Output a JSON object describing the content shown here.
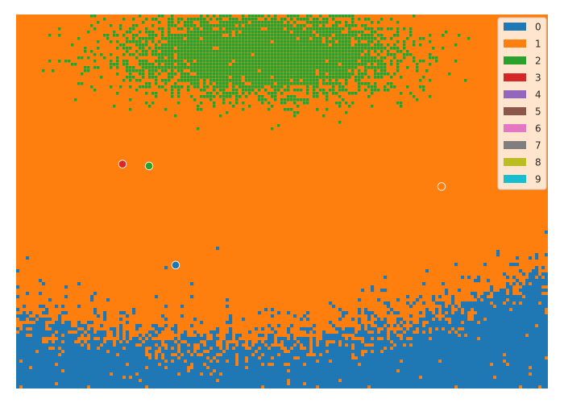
{
  "chart_data": {
    "type": "heatmap",
    "title": "",
    "xlabel": "",
    "ylabel": "",
    "axes_visible": false,
    "grid": false,
    "legend_placement": "top-right",
    "x": [
      0,
      100
    ],
    "y": [
      0,
      100
    ],
    "classes": [
      {
        "label": "0",
        "color": "#1f77b4"
      },
      {
        "label": "1",
        "color": "#ff7f0e"
      },
      {
        "label": "2",
        "color": "#2ca02c"
      },
      {
        "label": "3",
        "color": "#d62728"
      },
      {
        "label": "4",
        "color": "#9467bd"
      },
      {
        "label": "5",
        "color": "#8c564b"
      },
      {
        "label": "6",
        "color": "#e377c2"
      },
      {
        "label": "7",
        "color": "#7f7f7f"
      },
      {
        "label": "8",
        "color": "#bcbd22"
      },
      {
        "label": "9",
        "color": "#17becf"
      }
    ],
    "background_class": "1",
    "regions": [
      {
        "class": "2",
        "description": "scattered cluster near top-center",
        "center": [
          46,
          89
        ],
        "spread": [
          18,
          8
        ]
      },
      {
        "class": "0",
        "description": "band along the bottom, rising toward the right",
        "edge_left_y": 19,
        "edge_mid_y": 12,
        "edge_right_y": 31
      }
    ],
    "points": [
      {
        "x": 20,
        "y": 60,
        "class": "3"
      },
      {
        "x": 25,
        "y": 59.5,
        "class": "2"
      },
      {
        "x": 80,
        "y": 54,
        "class": "1"
      },
      {
        "x": 30,
        "y": 33,
        "class": "0"
      }
    ]
  }
}
